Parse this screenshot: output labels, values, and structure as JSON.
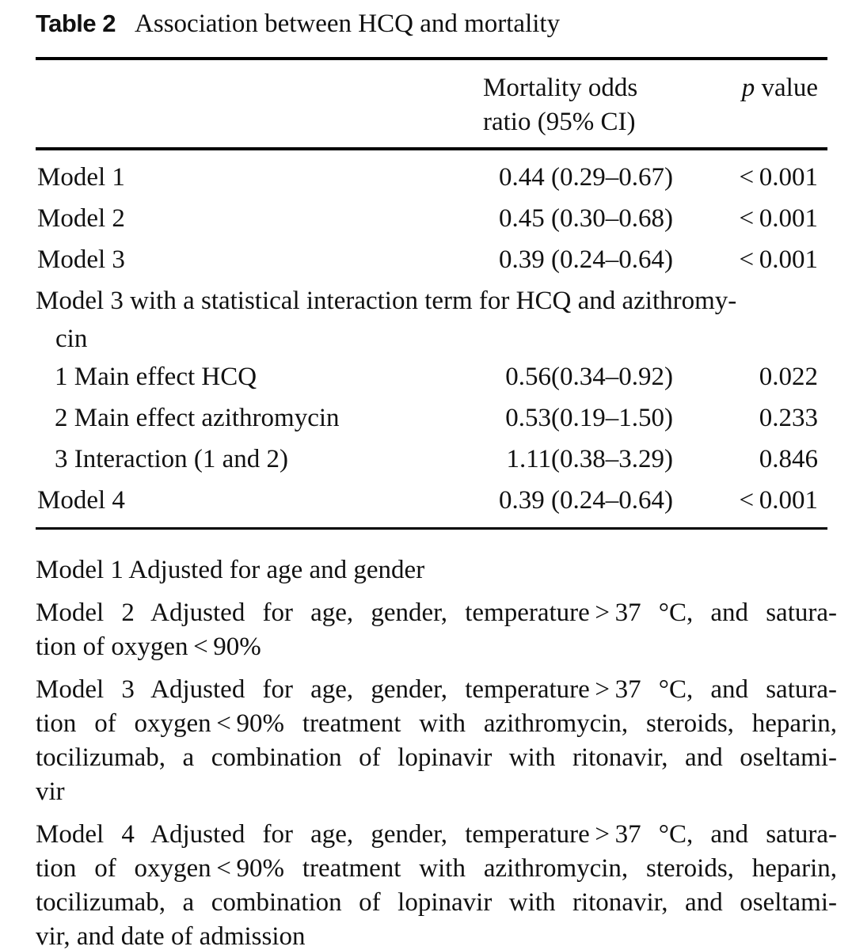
{
  "caption": {
    "label": "Table 2",
    "title": "Association between HCQ and mortality"
  },
  "table": {
    "header": {
      "or_line1": "Mortality odds",
      "or_line2": "ratio (95% CI)",
      "p_italic": "p",
      "p_rest": " value"
    },
    "rows": [
      {
        "label": "Model 1",
        "or": "0.44 (0.29–0.67)",
        "p": "< 0.001"
      },
      {
        "label": "Model 2",
        "or": "0.45 (0.30–0.68)",
        "p": "< 0.001"
      },
      {
        "label": "Model 3",
        "or": "0.39 (0.24–0.64)",
        "p": "< 0.001"
      },
      {
        "label_line1": "Model 3 with a statistical interaction term for HCQ and azithromy-",
        "label_line2": "cin"
      },
      {
        "label": "1 Main effect HCQ",
        "or": "0.56(0.34–0.92)",
        "p": "0.022"
      },
      {
        "label": "2 Main effect azithromycin",
        "or": "0.53(0.19–1.50)",
        "p": "0.233"
      },
      {
        "label": "3 Interaction (1 and 2)",
        "or": "1.11(0.38–3.29)",
        "p": "0.846"
      },
      {
        "label": "Model 4",
        "or": "0.39 (0.24–0.64)",
        "p": "< 0.001"
      }
    ]
  },
  "footnotes": [
    {
      "lines": [
        "Model 1 Adjusted for age and gender"
      ]
    },
    {
      "lines": [
        "Model 2 Adjusted for age, gender, temperature > 37 °C, and satura-",
        "tion of oxygen < 90%"
      ]
    },
    {
      "lines": [
        "Model 3 Adjusted for age, gender, temperature > 37 °C, and satura-",
        "tion of oxygen < 90% treatment with azithromycin, steroids, heparin,",
        "tocilizumab, a combination of lopinavir with ritonavir, and oseltami-",
        "vir"
      ]
    },
    {
      "lines": [
        "Model 4 Adjusted for age, gender, temperature > 37 °C, and satura-",
        "tion of oxygen < 90% treatment with azithromycin, steroids, heparin,",
        "tocilizumab, a combination of lopinavir with ritonavir, and oseltami-",
        "vir, and date of admission"
      ]
    }
  ]
}
